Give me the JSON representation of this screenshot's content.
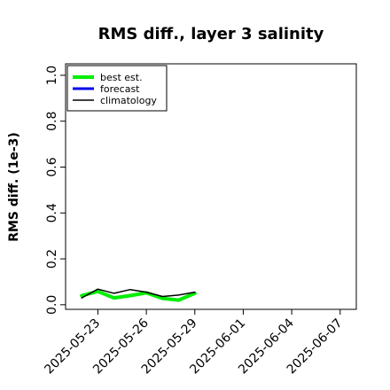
{
  "chart_data": {
    "type": "line",
    "title": "RMS diff., layer 3 salinity",
    "ylabel": "RMS diff. (1e-3)",
    "xlabel": "",
    "ylim": [
      -0.02,
      1.05
    ],
    "yticks": [
      0.0,
      0.2,
      0.4,
      0.6,
      0.8,
      1.0
    ],
    "ytick_labels": [
      "0.0",
      "0.2",
      "0.4",
      "0.6",
      "0.8",
      "1.0"
    ],
    "xlim": [
      "2025-05-21",
      "2025-06-08"
    ],
    "xticks": [
      "2025-05-23",
      "2025-05-26",
      "2025-05-29",
      "2025-06-01",
      "2025-06-04",
      "2025-06-07"
    ],
    "highlighted_xtick": "2025-05-29",
    "highlight_color": "#228B22",
    "legend_position": "top-left",
    "series": [
      {
        "name": "best est.",
        "color": "#00ee00",
        "x": [
          "2025-05-22",
          "2025-05-23",
          "2025-05-24",
          "2025-05-25",
          "2025-05-26",
          "2025-05-27",
          "2025-05-28",
          "2025-05-29"
        ],
        "values": [
          0.04,
          0.058,
          0.03,
          0.04,
          0.052,
          0.028,
          0.02,
          0.05
        ]
      },
      {
        "name": "forecast",
        "color": "#0000ee",
        "x": [],
        "values": []
      },
      {
        "name": "climatology",
        "color": "#000000",
        "x": [
          "2025-05-22",
          "2025-05-23",
          "2025-05-24",
          "2025-05-25",
          "2025-05-26",
          "2025-05-27",
          "2025-05-28",
          "2025-05-29"
        ],
        "values": [
          0.03,
          0.068,
          0.05,
          0.066,
          0.055,
          0.036,
          0.042,
          0.055
        ]
      }
    ]
  }
}
